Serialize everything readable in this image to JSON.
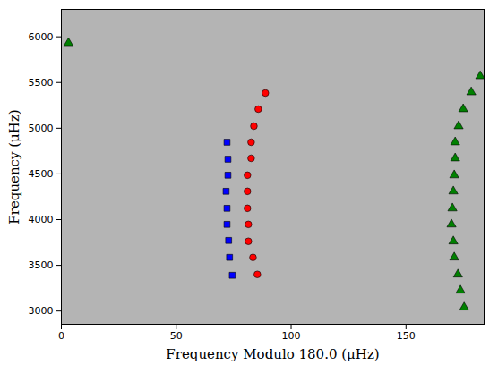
{
  "chart_data": {
    "type": "scatter",
    "x_label": "Frequency Modulo 180.0 (μHz)",
    "y_label": "Frequency (μHz)",
    "xlim": [
      0,
      184
    ],
    "ylim": [
      2855,
      6300
    ],
    "xticks": [
      0,
      50,
      100,
      150
    ],
    "yticks": [
      3000,
      3500,
      4000,
      4500,
      5000,
      5500,
      6000
    ],
    "grid": false,
    "series": [
      {
        "color": "#0000ff",
        "marker": "square",
        "x": [
          72.1,
          72.5,
          72.5,
          71.7,
          72.1,
          72.1,
          72.8,
          73.2,
          74.4
        ],
        "values": [
          4847,
          4661,
          4486,
          4310,
          4124,
          3948,
          3772,
          3587,
          3391
        ]
      },
      {
        "color": "#ff0000",
        "marker": "circle",
        "x": [
          88.8,
          85.7,
          83.8,
          82.6,
          82.6,
          81.0,
          81.0,
          81.0,
          81.4,
          81.4,
          83.4,
          85.3
        ],
        "values": [
          5385,
          5209,
          5023,
          4847,
          4671,
          4486,
          4310,
          4124,
          3948,
          3763,
          3587,
          3401
        ]
      },
      {
        "color": "#008000",
        "marker": "triangle",
        "x": [
          3.1,
          182.3,
          178.4,
          174.9,
          172.9,
          171.4,
          171.4,
          171.0,
          170.6,
          170.2,
          169.8,
          170.6,
          171.0,
          172.6,
          173.7,
          175.3
        ],
        "values": [
          5932,
          5570,
          5394,
          5209,
          5023,
          4847,
          4671,
          4486,
          4310,
          4124,
          3948,
          3763,
          3587,
          3401,
          3225,
          3040
        ]
      }
    ]
  }
}
